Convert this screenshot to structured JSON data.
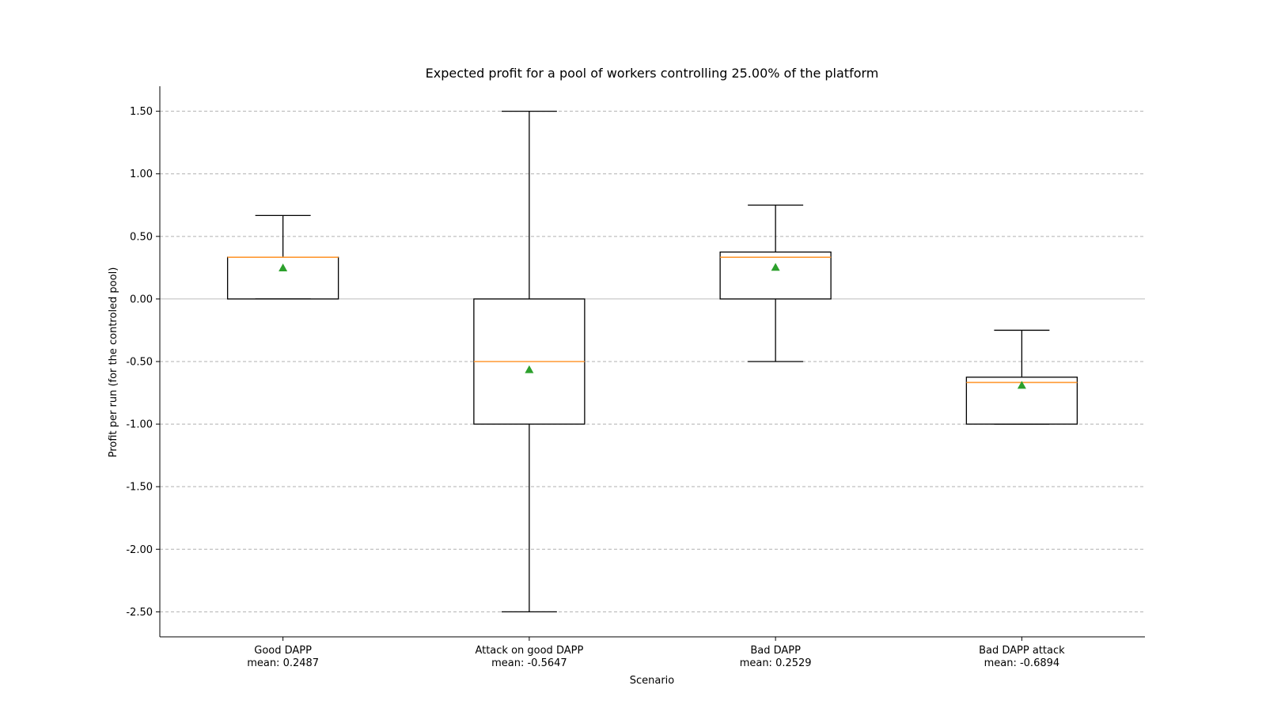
{
  "chart_data": {
    "type": "box",
    "title": "Expected profit for a pool of workers controlling 25.00% of the platform",
    "xlabel": "Scenario",
    "ylabel": "Profit per run (for the controled pool)",
    "ylim": [
      -2.7,
      1.7
    ],
    "yticks": [
      1.5,
      1.0,
      0.5,
      0.0,
      -0.5,
      -1.0,
      -1.5,
      -2.0,
      -2.5
    ],
    "ytick_labels": [
      "1.50",
      "1.00",
      "0.50",
      "0.00",
      "-0.50",
      "-1.00",
      "-1.50",
      "-2.00",
      "-2.50"
    ],
    "grid": "y-dashed",
    "zero_line": true,
    "colors": {
      "median": "#ff9933",
      "mean": "#2ca02c",
      "box": "#000000",
      "grid": "#b0b0b0"
    },
    "boxes": [
      {
        "name": "Good DAPP",
        "mean_label": "mean: 0.2487",
        "whisker_low": 0.0,
        "q1": 0.0,
        "median": 0.333,
        "q3": 0.333,
        "whisker_high": 0.667,
        "mean": 0.2487
      },
      {
        "name": "Attack on good DAPP",
        "mean_label": "mean: -0.5647",
        "whisker_low": -2.5,
        "q1": -1.0,
        "median": -0.5,
        "q3": 0.0,
        "whisker_high": 1.5,
        "mean": -0.5647
      },
      {
        "name": "Bad DAPP",
        "mean_label": "mean: 0.2529",
        "whisker_low": -0.5,
        "q1": 0.0,
        "median": 0.333,
        "q3": 0.375,
        "whisker_high": 0.75,
        "mean": 0.2529
      },
      {
        "name": "Bad DAPP attack",
        "mean_label": "mean: -0.6894",
        "whisker_low": -1.0,
        "q1": -1.0,
        "median": -0.667,
        "q3": -0.625,
        "whisker_high": -0.25,
        "mean": -0.6894
      }
    ]
  }
}
